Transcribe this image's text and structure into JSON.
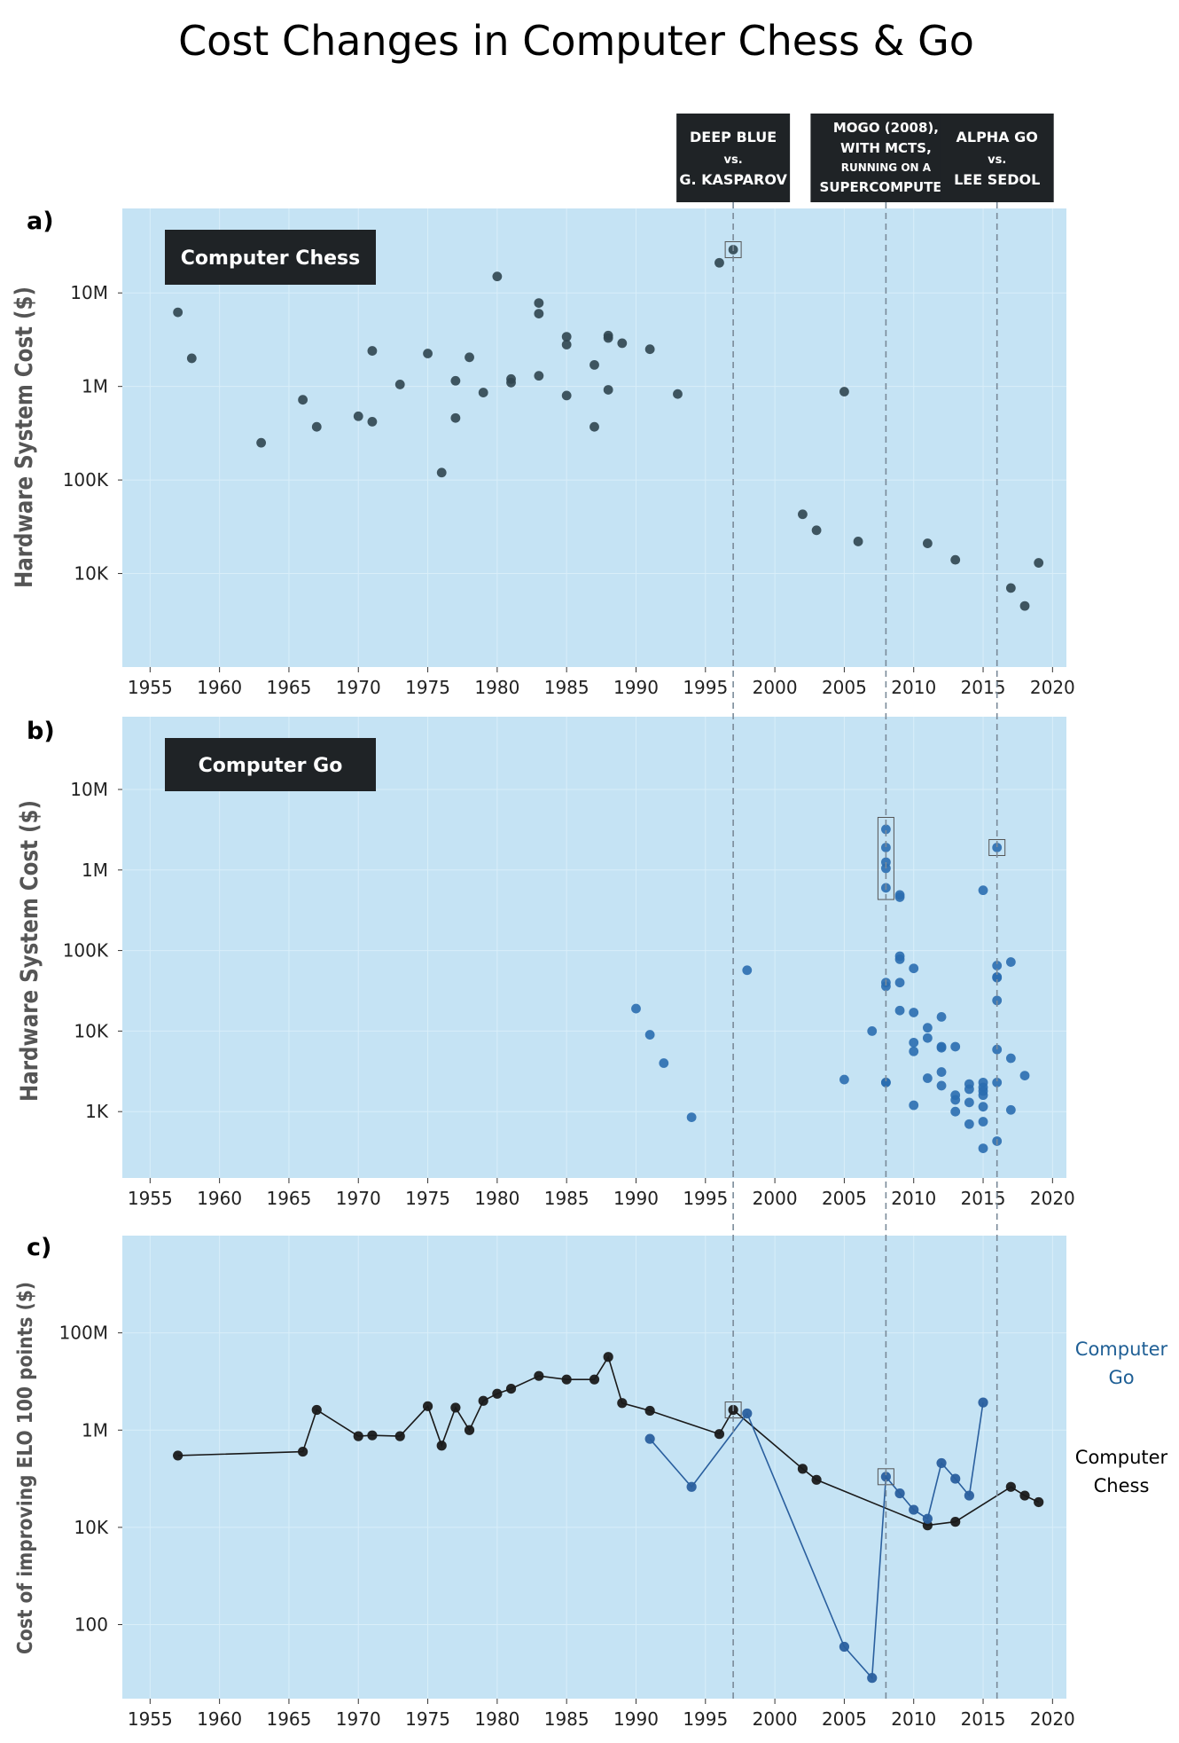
{
  "title": "Cost Changes in Computer Chess & Go",
  "colors": {
    "panel_bg": "#c5e3f4",
    "chess": "#2f4550",
    "go": "#2a6db0",
    "line_chess": "#1a1a1a",
    "line_go": "#2a5f9e",
    "label_box": "#1f2326",
    "dashed": "#7a8a99",
    "legend_go": "#1f5f95"
  },
  "events": [
    {
      "year": 1997,
      "lines": [
        "DEEP BLUE",
        "vs.",
        "G. KASPAROV"
      ]
    },
    {
      "year": 2008,
      "lines": [
        "MOGO (2008),",
        "WITH MCTS,",
        "RUNNING ON A",
        "SUPERCOMPUTER"
      ]
    },
    {
      "year": 2016,
      "lines": [
        "ALPHA GO",
        "vs.",
        "LEE SEDOL"
      ]
    }
  ],
  "chart_data": [
    {
      "panel": "a)",
      "type": "scatter",
      "box_label": "Computer Chess",
      "ylabel": "Hardware System Cost ($)",
      "yscale": "log",
      "xlim": [
        1953,
        2021
      ],
      "ylim": [
        1000,
        80000000
      ],
      "xticks": [
        1955,
        1960,
        1965,
        1970,
        1975,
        1980,
        1985,
        1990,
        1995,
        2000,
        2005,
        2010,
        2015,
        2020
      ],
      "yticks": [
        {
          "value": 10000000,
          "label": "10M"
        },
        {
          "value": 1000000,
          "label": "1M"
        },
        {
          "value": 100000,
          "label": "100K"
        },
        {
          "value": 10000,
          "label": "10K"
        }
      ],
      "series": [
        {
          "color_key": "chess",
          "x": [
            1957,
            1958,
            1963,
            1966,
            1967,
            1970,
            1971,
            1971,
            1973,
            1975,
            1976,
            1977,
            1977,
            1978,
            1979,
            1980,
            1981,
            1981,
            1983,
            1983,
            1983,
            1985,
            1985,
            1985,
            1987,
            1987,
            1988,
            1988,
            1988,
            1989,
            1991,
            1993,
            1996,
            1997,
            2002,
            2003,
            2005,
            2006,
            2011,
            2013,
            2017,
            2018,
            2019
          ],
          "y": [
            6200000,
            2000000,
            250000,
            720000,
            370000,
            480000,
            420000,
            2400000,
            1050000,
            2250000,
            120000,
            1150000,
            460000,
            2050000,
            860000,
            15000000,
            1200000,
            1100000,
            7800000,
            6000000,
            1300000,
            3400000,
            2800000,
            800000,
            1700000,
            370000,
            3500000,
            3300000,
            920000,
            2900000,
            2500000,
            830000,
            21000000,
            29000000,
            43000,
            29000,
            880000,
            22000,
            21000,
            14000,
            7000,
            4500,
            13000
          ]
        }
      ],
      "highlights": [
        {
          "x": 1997,
          "y": 29000000
        }
      ]
    },
    {
      "panel": "b)",
      "type": "scatter",
      "box_label": "Computer Go",
      "ylabel": "Hardware System Cost ($)",
      "yscale": "log",
      "xlim": [
        1953,
        2021
      ],
      "ylim": [
        150,
        80000000
      ],
      "xticks": [
        1955,
        1960,
        1965,
        1970,
        1975,
        1980,
        1985,
        1990,
        1995,
        2000,
        2005,
        2010,
        2015,
        2020
      ],
      "yticks": [
        {
          "value": 10000000,
          "label": "10M"
        },
        {
          "value": 1000000,
          "label": "1M"
        },
        {
          "value": 100000,
          "label": "100K"
        },
        {
          "value": 10000,
          "label": "10K"
        },
        {
          "value": 1000,
          "label": "1K"
        }
      ],
      "series": [
        {
          "color_key": "go",
          "x": [
            1990,
            1991,
            1992,
            1994,
            1998,
            2005,
            2007,
            2008,
            2008,
            2008,
            2008,
            2008,
            2008,
            2008,
            2008,
            2008,
            2009,
            2009,
            2009,
            2009,
            2009,
            2009,
            2010,
            2010,
            2010,
            2010,
            2010,
            2011,
            2011,
            2011,
            2012,
            2012,
            2012,
            2012,
            2012,
            2013,
            2013,
            2013,
            2013,
            2014,
            2014,
            2014,
            2014,
            2015,
            2015,
            2015,
            2015,
            2015,
            2015,
            2015,
            2015,
            2016,
            2016,
            2016,
            2016,
            2016,
            2016,
            2016,
            2016,
            2017,
            2017,
            2017,
            2018
          ],
          "y": [
            19000,
            9000,
            4000,
            850,
            57000,
            2500,
            10000,
            3200000,
            1900000,
            1250000,
            1050000,
            600000,
            40000,
            36000,
            2300,
            2300,
            490000,
            460000,
            85000,
            78000,
            40000,
            18000,
            7200,
            60000,
            17000,
            5600,
            1200,
            11000,
            8200,
            2600,
            15000,
            6400,
            6200,
            3100,
            2100,
            6400,
            1600,
            1400,
            1000,
            2200,
            1900,
            1300,
            700,
            560000,
            2300,
            2000,
            1800,
            1600,
            1150,
            750,
            350,
            1900000,
            65000,
            47000,
            46000,
            24000,
            5900,
            2300,
            430,
            72000,
            4600,
            1050,
            2800
          ]
        }
      ],
      "highlights": [
        {
          "x": 2008,
          "y0": 430000,
          "y1": 4500000
        },
        {
          "x": 2016,
          "y": 1900000
        }
      ]
    },
    {
      "panel": "c)",
      "type": "line",
      "ylabel": "Cost of improving ELO 100 points ($)",
      "yscale": "log",
      "xlim": [
        1953,
        2021
      ],
      "ylim": [
        3,
        10000000000
      ],
      "xticks": [
        1955,
        1960,
        1965,
        1970,
        1975,
        1980,
        1985,
        1990,
        1995,
        2000,
        2005,
        2010,
        2015,
        2020
      ],
      "yticks": [
        {
          "value": 100000000,
          "label": "100M"
        },
        {
          "value": 1000000,
          "label": "1M"
        },
        {
          "value": 10000,
          "label": "10K"
        },
        {
          "value": 100,
          "label": "100"
        }
      ],
      "series": [
        {
          "name": "Computer Chess",
          "color_key": "line_chess",
          "x": [
            1957,
            1966,
            1967,
            1970,
            1971,
            1973,
            1975,
            1976,
            1977,
            1978,
            1979,
            1980,
            1981,
            1983,
            1985,
            1987,
            1988,
            1989,
            1991,
            1996,
            1997,
            2002,
            2003,
            2011,
            2013,
            2017,
            2018,
            2019
          ],
          "y": [
            300000,
            360000,
            2600000,
            750000,
            780000,
            750000,
            3100000,
            480000,
            2900000,
            1000000,
            4000000,
            5600000,
            7100000,
            13000000,
            11000000,
            11000000,
            32000000,
            3600000,
            2500000,
            830000,
            2600000,
            160000,
            95000,
            11000,
            13000,
            68000,
            45000,
            33000
          ]
        },
        {
          "name": "Computer Go",
          "color_key": "line_go",
          "x": [
            1991,
            1994,
            1998,
            2005,
            2007,
            2008,
            2009,
            2010,
            2011,
            2012,
            2013,
            2014,
            2015
          ],
          "y": [
            660000,
            68000,
            2200000,
            35,
            8,
            110000,
            50000,
            23000,
            15000,
            210000,
            100000,
            45000,
            3700000
          ]
        }
      ],
      "highlights": [
        {
          "x": 1997,
          "y": 2600000
        },
        {
          "x": 2008,
          "y": 110000
        }
      ]
    }
  ]
}
